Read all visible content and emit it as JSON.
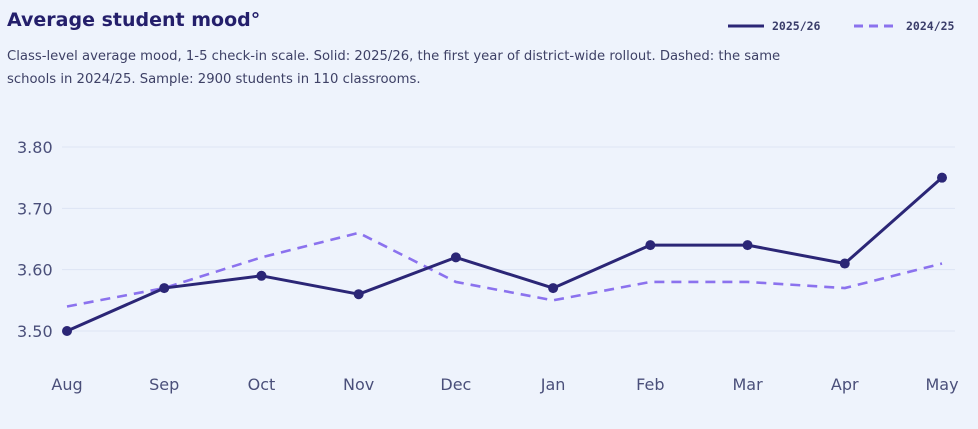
{
  "header": {
    "title": "Average student mood°",
    "subtitle": "Class-level average mood, 1-5 check-in scale. Solid: 2025/26, the first year of district-wide rollout. Dashed: the same schools in 2024/25. Sample: 2900 students in 110 classrooms."
  },
  "colors": {
    "primary": "#2b2676",
    "secondary": "#8b72ee",
    "grid": "#dde4f4",
    "background": "#eef3fc"
  },
  "chart_data": {
    "type": "line",
    "title": "Average student mood°",
    "xlabel": "",
    "ylabel": "",
    "categories": [
      "Aug",
      "Sep",
      "Oct",
      "Nov",
      "Dec",
      "Jan",
      "Feb",
      "Mar",
      "Apr",
      "May"
    ],
    "ylim": [
      3.5,
      3.8
    ],
    "yticks": [
      "3.50",
      "3.60",
      "3.70",
      "3.80"
    ],
    "grid": true,
    "legend_position": "top-right",
    "series": [
      {
        "name": "2025/26",
        "style": "solid",
        "markers": true,
        "color": "#2b2676",
        "values": [
          3.5,
          3.57,
          3.59,
          3.56,
          3.62,
          3.57,
          3.64,
          3.64,
          3.61,
          3.75
        ]
      },
      {
        "name": "2024/25",
        "style": "dashed",
        "markers": false,
        "color": "#8b72ee",
        "values": [
          3.54,
          3.57,
          3.62,
          3.66,
          3.58,
          3.55,
          3.58,
          3.58,
          3.57,
          3.61
        ]
      }
    ]
  }
}
